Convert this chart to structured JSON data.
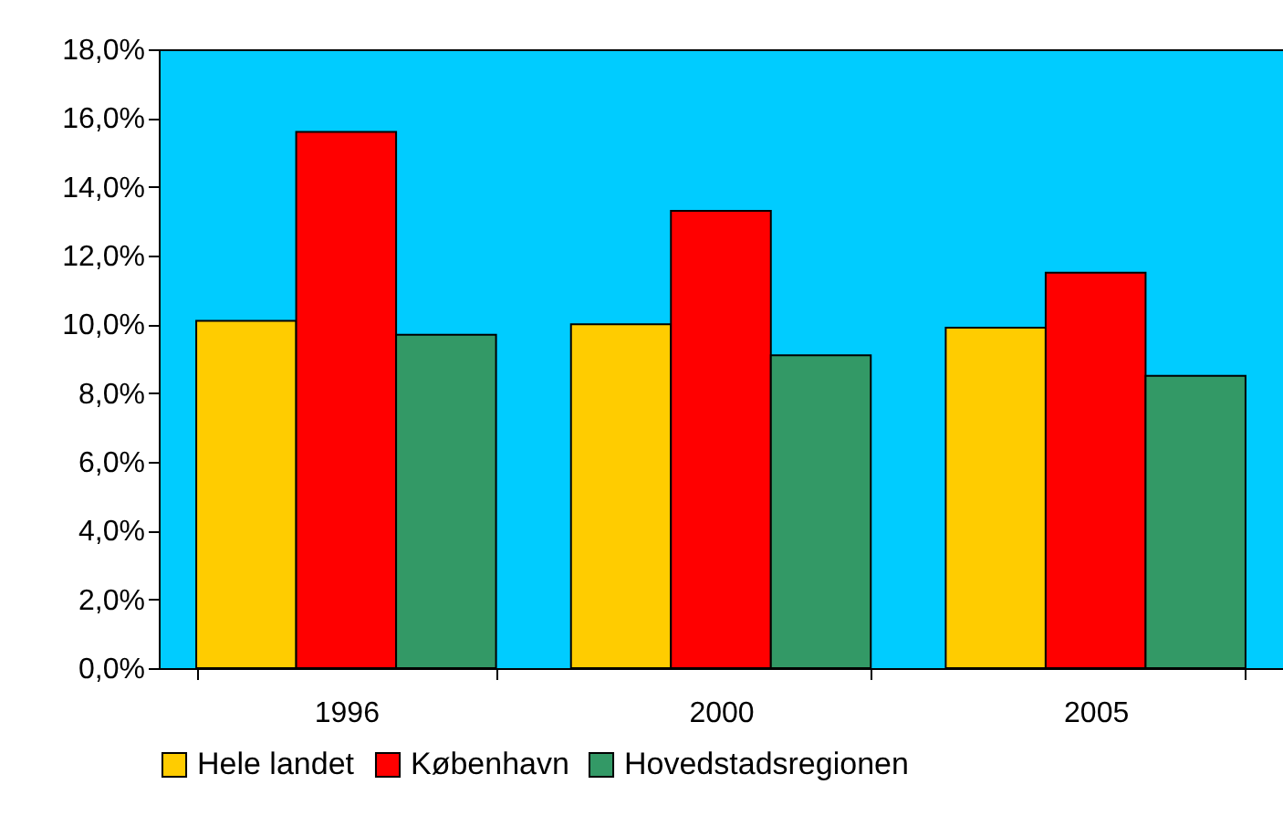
{
  "chart_data": {
    "type": "bar",
    "categories": [
      "1996",
      "2000",
      "2005"
    ],
    "series": [
      {
        "name": "Hele landet",
        "color": "#ffcc00",
        "values": [
          10.1,
          10.0,
          9.9
        ]
      },
      {
        "name": "København",
        "color": "#ff0000",
        "values": [
          15.6,
          13.3,
          11.5
        ]
      },
      {
        "name": "Hovedstadsregionen",
        "color": "#339966",
        "values": [
          9.7,
          9.1,
          8.5
        ]
      }
    ],
    "ylim": [
      0,
      18
    ],
    "yticks": [
      {
        "value": 0,
        "label": "0,0%"
      },
      {
        "value": 2,
        "label": "2,0%"
      },
      {
        "value": 4,
        "label": "4,0%"
      },
      {
        "value": 6,
        "label": "6,0%"
      },
      {
        "value": 8,
        "label": "8,0%"
      },
      {
        "value": 10,
        "label": "10,0%"
      },
      {
        "value": 12,
        "label": "12,0%"
      },
      {
        "value": 14,
        "label": "14,0%"
      },
      {
        "value": 16,
        "label": "16,0%"
      },
      {
        "value": 18,
        "label": "18,0%"
      }
    ],
    "grid": false,
    "legend": "bottom"
  }
}
